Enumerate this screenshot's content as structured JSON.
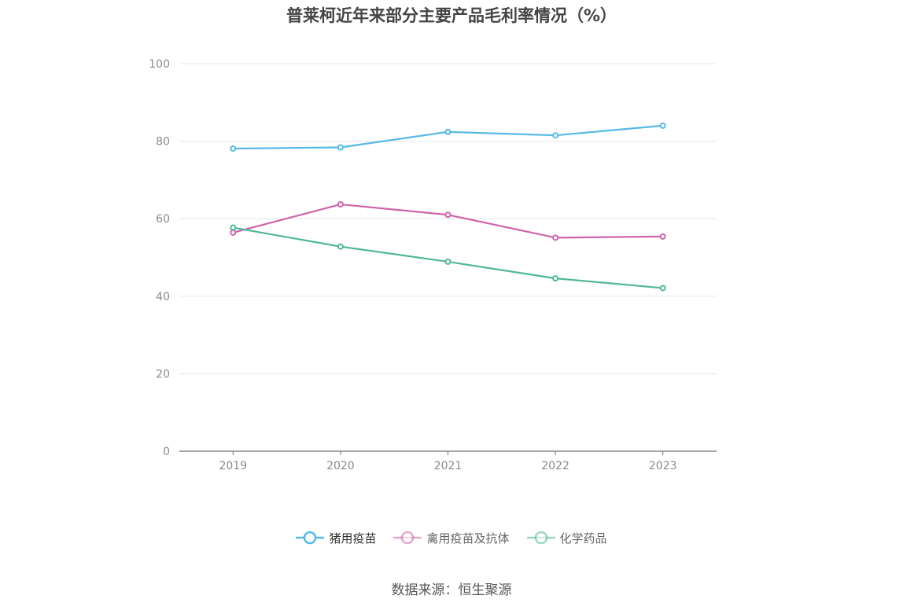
{
  "chart_data": {
    "type": "line",
    "title": "普莱柯近年来部分主要产品毛利率情况（%）",
    "categories": [
      "2019",
      "2020",
      "2021",
      "2022",
      "2023"
    ],
    "ylim": [
      0,
      100
    ],
    "yticks": [
      0,
      20,
      40,
      60,
      80,
      100
    ],
    "grid": true,
    "legend_position": "bottom",
    "series": [
      {
        "name": "猪用疫苗",
        "color": "#56b9e8",
        "values": [
          78.1,
          78.4,
          82.4,
          81.5,
          84.0
        ]
      },
      {
        "name": "禽用疫苗及抗体",
        "color": "#d064aa",
        "values": [
          56.4,
          63.7,
          61.0,
          55.1,
          55.4
        ]
      },
      {
        "name": "化学药品",
        "color": "#4fb79a",
        "values": [
          57.7,
          52.8,
          48.9,
          44.6,
          42.1
        ]
      }
    ]
  },
  "source": "数据来源：恒生聚源"
}
